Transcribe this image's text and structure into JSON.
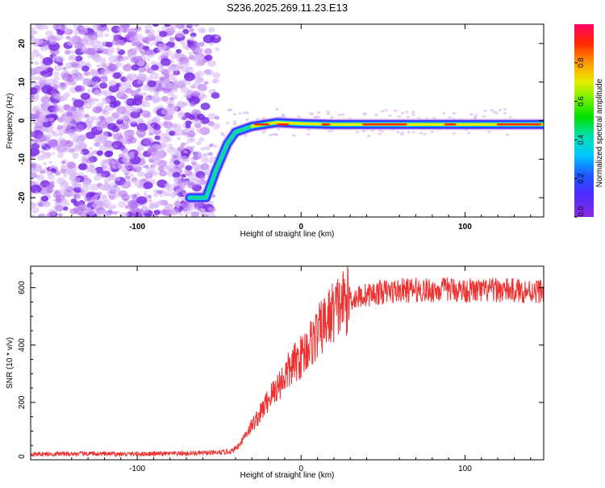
{
  "title": "S236.2025.269.11.23.E13",
  "chart_data": [
    {
      "type": "heatmap",
      "xlabel": "Height of straight line (km)",
      "ylabel": "Frequency (Hz)",
      "xlim": [
        -165,
        148
      ],
      "ylim": [
        -25,
        25
      ],
      "xticks": [
        -100,
        0,
        100
      ],
      "yticks": [
        -20,
        -10,
        0,
        10,
        20
      ],
      "colorbar": {
        "label": "Normalized spectral amplitude",
        "range": [
          0,
          1
        ],
        "ticks": [
          0.0,
          0.2,
          0.4,
          0.6,
          0.8
        ]
      },
      "noise_region_x": [
        -165,
        -55
      ],
      "signal_track": [
        {
          "x": -68,
          "y": -20
        },
        {
          "x": -58,
          "y": -20
        },
        {
          "x": -52,
          "y": -13
        },
        {
          "x": -45,
          "y": -6
        },
        {
          "x": -40,
          "y": -3
        },
        {
          "x": -30,
          "y": -1.5
        },
        {
          "x": -15,
          "y": -0.5
        },
        {
          "x": 0,
          "y": -0.8
        },
        {
          "x": 20,
          "y": -1
        },
        {
          "x": 60,
          "y": -1
        },
        {
          "x": 100,
          "y": -1
        },
        {
          "x": 148,
          "y": -1
        }
      ]
    },
    {
      "type": "line",
      "xlabel": "Height of straight line (km)",
      "ylabel": "SNR (10 * v/v)",
      "xlim": [
        -165,
        148
      ],
      "ylim": [
        0,
        675
      ],
      "xticks": [
        -100,
        0,
        100
      ],
      "yticks": [
        0,
        200,
        400,
        600
      ],
      "series": [
        {
          "color": "#ee3333",
          "x": [
            -165,
            -150,
            -130,
            -110,
            -90,
            -70,
            -50,
            -42,
            -38,
            -35,
            -30,
            -25,
            -20,
            -15,
            -10,
            -5,
            0,
            5,
            10,
            15,
            20,
            25,
            30,
            40,
            50,
            60,
            70,
            80,
            90,
            100,
            110,
            120,
            130,
            140,
            148
          ],
          "y": [
            20,
            20,
            21,
            20,
            21,
            22,
            24,
            30,
            50,
            80,
            120,
            160,
            210,
            250,
            290,
            330,
            360,
            400,
            440,
            480,
            520,
            545,
            560,
            575,
            585,
            590,
            592,
            590,
            595,
            590,
            588,
            592,
            590,
            588,
            590
          ]
        }
      ]
    }
  ]
}
